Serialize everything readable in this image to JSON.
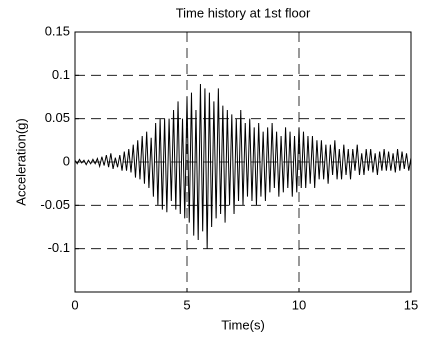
{
  "chart_data": {
    "type": "line",
    "title": "Time history at 1st floor",
    "x_label": "Time(s)",
    "y_label": "Acceleration(g)",
    "xlim": [
      0,
      15
    ],
    "xticks": [
      0,
      5,
      10,
      15
    ],
    "ylim": [
      -0.15,
      0.15
    ],
    "yticks": [
      -0.1,
      -0.05,
      0,
      0.05,
      0.1,
      0.15
    ],
    "grid": true,
    "series": [
      {
        "color": "#000000",
        "x": [
          0,
          0.1,
          0.2,
          0.3,
          0.4,
          0.5,
          0.6,
          0.7,
          0.8,
          0.9,
          1,
          1.1,
          1.2,
          1.3,
          1.4,
          1.5,
          1.6,
          1.7,
          1.8,
          1.9,
          2,
          2.1,
          2.2,
          2.3,
          2.4,
          2.5,
          2.6,
          2.7,
          2.8,
          2.9,
          3,
          3.1,
          3.2,
          3.3,
          3.4,
          3.5,
          3.6,
          3.7,
          3.8,
          3.9,
          4,
          4.1,
          4.2,
          4.3,
          4.4,
          4.5,
          4.6,
          4.7,
          4.8,
          4.9,
          5,
          5.1,
          5.2,
          5.3,
          5.4,
          5.5,
          5.6,
          5.7,
          5.8,
          5.9,
          6,
          6.1,
          6.2,
          6.3,
          6.4,
          6.5,
          6.6,
          6.7,
          6.8,
          6.9,
          7,
          7.1,
          7.2,
          7.3,
          7.4,
          7.5,
          7.6,
          7.7,
          7.8,
          7.9,
          8,
          8.1,
          8.2,
          8.3,
          8.4,
          8.5,
          8.6,
          8.7,
          8.8,
          8.9,
          9,
          9.1,
          9.2,
          9.3,
          9.4,
          9.5,
          9.6,
          9.7,
          9.8,
          9.9,
          10,
          10.1,
          10.2,
          10.3,
          10.4,
          10.5,
          10.6,
          10.7,
          10.8,
          10.9,
          11,
          11.1,
          11.2,
          11.3,
          11.4,
          11.5,
          11.6,
          11.7,
          11.8,
          11.9,
          12,
          12.1,
          12.2,
          12.3,
          12.4,
          12.5,
          12.6,
          12.7,
          12.8,
          12.9,
          13,
          13.1,
          13.2,
          13.3,
          13.4,
          13.5,
          13.6,
          13.7,
          13.8,
          13.9,
          14,
          14.1,
          14.2,
          14.3,
          14.4,
          14.5,
          14.6,
          14.7,
          14.8,
          14.9,
          15
        ],
        "values": [
          0.002,
          -0.002,
          0.003,
          -0.001,
          0.002,
          -0.003,
          0.002,
          -0.002,
          0.003,
          -0.002,
          0.004,
          -0.005,
          0.006,
          -0.004,
          0.008,
          -0.006,
          0.01,
          -0.008,
          0.005,
          -0.006,
          0.008,
          -0.01,
          0.012,
          -0.01,
          0.015,
          -0.012,
          0.02,
          -0.018,
          0.025,
          -0.02,
          0.03,
          -0.025,
          0.035,
          -0.03,
          0.028,
          -0.04,
          0.045,
          -0.05,
          0.05,
          -0.055,
          0.05,
          -0.058,
          0.05,
          -0.045,
          0.06,
          -0.055,
          0.07,
          -0.06,
          0.05,
          -0.065,
          0.075,
          -0.07,
          0.08,
          -0.085,
          0.06,
          -0.09,
          0.09,
          -0.08,
          0.085,
          -0.1,
          0.08,
          -0.075,
          0.07,
          -0.065,
          0.085,
          -0.06,
          0.065,
          -0.07,
          0.06,
          -0.05,
          0.055,
          -0.06,
          0.05,
          -0.045,
          0.06,
          -0.05,
          0.045,
          -0.04,
          0.05,
          -0.045,
          0.04,
          -0.05,
          0.045,
          -0.04,
          0.035,
          -0.045,
          0.04,
          -0.035,
          0.045,
          -0.03,
          0.035,
          -0.04,
          0.03,
          -0.035,
          0.04,
          -0.03,
          0.035,
          -0.04,
          0.03,
          -0.035,
          0.04,
          -0.03,
          0.035,
          -0.03,
          0.03,
          -0.025,
          0.03,
          -0.03,
          0.025,
          -0.02,
          0.025,
          -0.02,
          0.02,
          -0.025,
          0.02,
          -0.015,
          0.025,
          -0.02,
          0.015,
          -0.02,
          0.02,
          -0.015,
          0.015,
          -0.02,
          0.015,
          -0.01,
          0.02,
          -0.015,
          0.01,
          -0.015,
          0.015,
          -0.01,
          0.015,
          -0.012,
          0.01,
          -0.015,
          0.012,
          -0.01,
          0.015,
          -0.01,
          0.012,
          -0.01,
          0.01,
          -0.012,
          0.015,
          -0.01,
          0.012,
          -0.008,
          0.01,
          -0.01,
          0.005
        ]
      }
    ]
  }
}
